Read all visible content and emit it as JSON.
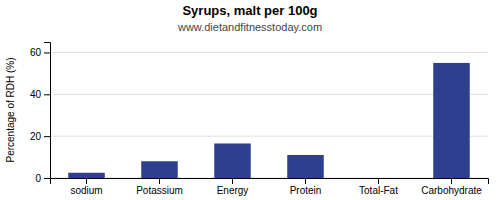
{
  "chart_data": {
    "type": "bar",
    "title": "Syrups, malt per 100g",
    "subtitle": "www.dietandfitnesstoday.com",
    "categories": [
      "sodium",
      "Potassium",
      "Energy",
      "Protein",
      "Total-Fat",
      "Carbohydrate"
    ],
    "values": [
      2.5,
      8.0,
      16.5,
      11.0,
      0.0,
      55.0
    ],
    "color": "#2e3f8f",
    "y_label": "Percentage of RDH (%)",
    "ylim": [
      0,
      65
    ],
    "yticks": [
      0,
      20,
      40,
      60
    ],
    "grid": true
  }
}
